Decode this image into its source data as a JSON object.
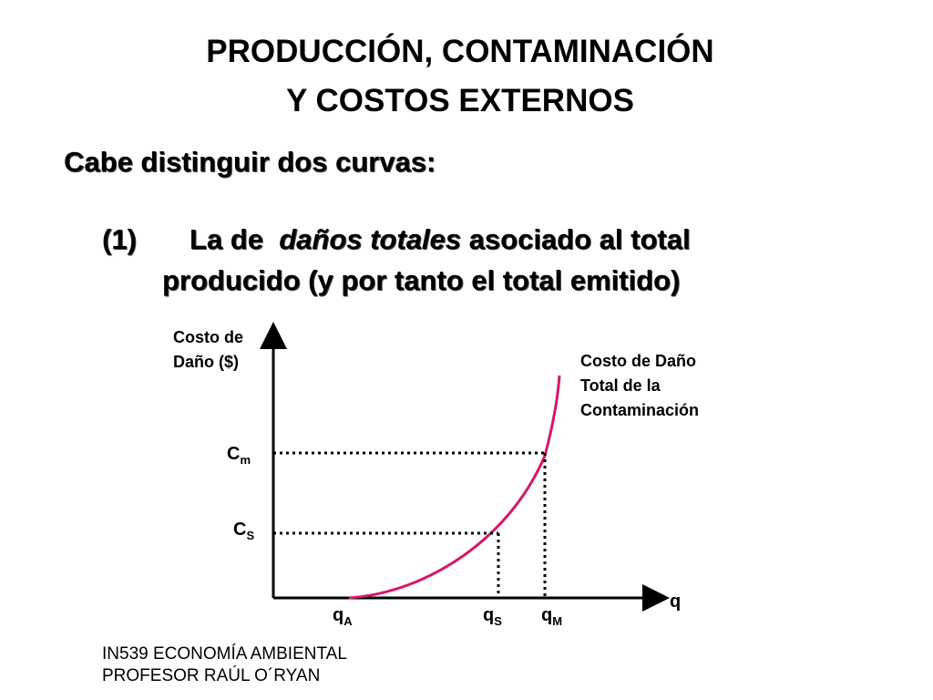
{
  "slide": {
    "title_line1": "PRODUCCIÓN, CONTAMINACIÓN",
    "title_line2": "Y COSTOS EXTERNOS",
    "subtitle": "Cabe distinguir dos curvas:",
    "point": {
      "number": "(1)",
      "text_before": "La de",
      "text_italic": "daños totales",
      "text_after": "asociado al total",
      "line2": "producido (y por tanto el total emitido)"
    },
    "footer": {
      "line1": "IN539 ECONOMÍA AMBIENTAL",
      "line2": "PROFESOR RAÚL O´RYAN"
    }
  },
  "diagram": {
    "y_axis_label_line1": "Costo de",
    "y_axis_label_line2": "Daño ($)",
    "x_axis_label": "q",
    "curve_label_line1": "Costo de Daño",
    "curve_label_line2": "Total de la",
    "curve_label_line3": "Contaminación",
    "curve_color": "#d6186a",
    "y_markers": [
      {
        "base": "C",
        "sub": "m"
      },
      {
        "base": "C",
        "sub": "S"
      }
    ],
    "x_markers": [
      {
        "base": "q",
        "sub": "A"
      },
      {
        "base": "q",
        "sub": "S"
      },
      {
        "base": "q",
        "sub": "M"
      }
    ]
  }
}
